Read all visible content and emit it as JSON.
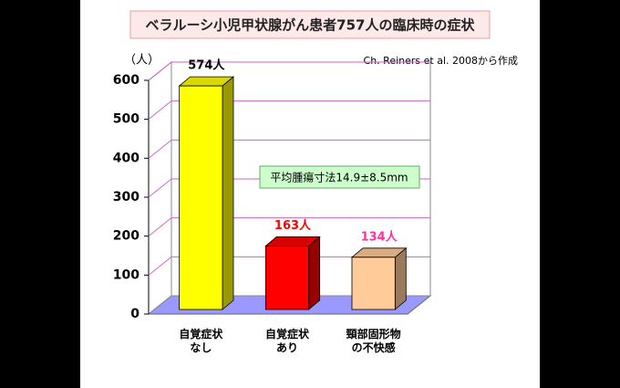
{
  "chart_data": {
    "type": "bar3d",
    "title": "ベラルーシ小児甲状腺がん患者757人の臨床時の症状",
    "y_axis_label": "（人）",
    "source": "Ch. Reiners et al. 2008から作成",
    "annotation": "平均腫瘍寸法14.9±8.5mm",
    "categories": [
      "自覚症状\nなし",
      "自覚症状\nあり",
      "頸部固形物\nの不快感"
    ],
    "values": [
      574,
      163,
      134
    ],
    "value_labels": [
      "574人",
      "163人",
      "134人"
    ],
    "colors": [
      "#ffff00",
      "#ff0000",
      "#ffcc99"
    ],
    "value_label_colors": [
      "#000000",
      "#ff0000",
      "#ff3399"
    ],
    "ylim": [
      0,
      600
    ],
    "yticks": [
      0,
      100,
      200,
      300,
      400,
      500,
      600
    ],
    "grid": true,
    "grid_color": "#cc66cc",
    "floor_color": "#9999ff"
  }
}
